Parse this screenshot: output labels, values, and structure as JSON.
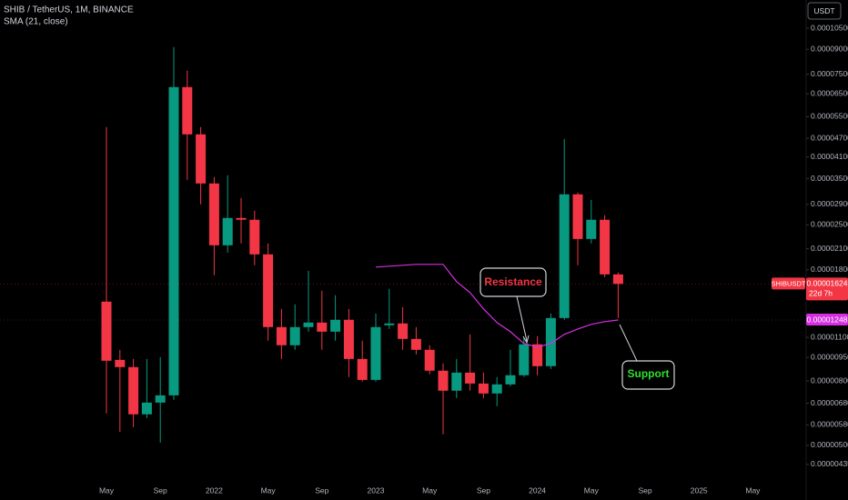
{
  "chart_data": {
    "type": "candlestick",
    "title": "SHIB / TetherUS, 1M, BINANCE",
    "subtitle": "SMA (21, close)",
    "currency": "USDT",
    "log_scale": true,
    "grid": false,
    "up_color": "#089981",
    "down_color": "#f23645",
    "categories": [
      "2021-05",
      "2021-06",
      "2021-07",
      "2021-08",
      "2021-09",
      "2021-10",
      "2021-11",
      "2021-12",
      "2022-01",
      "2022-02",
      "2022-03",
      "2022-04",
      "2022-05",
      "2022-06",
      "2022-07",
      "2022-08",
      "2022-09",
      "2022-10",
      "2022-11",
      "2022-12",
      "2023-01",
      "2023-02",
      "2023-03",
      "2023-04",
      "2023-05",
      "2023-06",
      "2023-07",
      "2023-08",
      "2023-09",
      "2023-10",
      "2023-11",
      "2023-12",
      "2024-01",
      "2024-02",
      "2024-03",
      "2024-04",
      "2024-05",
      "2024-06",
      "2024-07"
    ],
    "open": [
      1.427e-05,
      9.33e-06,
      8.85e-06,
      6.27e-06,
      6.83e-06,
      7.2e-06,
      6.832e-05,
      4.839e-05,
      3.381e-05,
      2.153e-05,
      2.628e-05,
      2.594e-05,
      2.015e-05,
      1.185e-05,
      1.038e-05,
      1.185e-05,
      1.225e-05,
      1.146e-05,
      1.25e-05,
      9.39e-06,
      8.06e-06,
      1.201e-05,
      1.217e-05,
      1.087e-05,
      1.004e-05,
      8.62e-06,
      7.45e-06,
      8.5e-06,
      7.85e-06,
      7.3e-06,
      7.8e-06,
      8.34e-06,
      1.045e-05,
      8.91e-06,
      1.266e-05,
      3.123e-05,
      2.255e-05,
      2.594e-05,
      1.741e-05
    ],
    "high": [
      5.102e-05,
      1.004e-05,
      9.39e-06,
      9.39e-06,
      9.52e-06,
      9.149e-05,
      7.699e-05,
      5.102e-05,
      3.542e-05,
      3.589e-05,
      3.04e-05,
      2.77e-05,
      2.182e-05,
      1.353e-05,
      1.399e-05,
      1.788e-05,
      1.545e-05,
      1.495e-05,
      1.353e-05,
      1.073e-05,
      1.309e-05,
      1.566e-05,
      1.371e-05,
      1.185e-05,
      1.038e-05,
      9.09e-06,
      9.39e-06,
      1.124e-05,
      8.5e-06,
      8.23e-06,
      1.004e-05,
      1.094e-05,
      1.109e-05,
      1.309e-05,
      4.68e-05,
      3.164e-05,
      3e-05,
      2.68e-05,
      1.765e-05
    ],
    "low": [
      6.31e-06,
      5.52e-06,
      5.71e-06,
      6.1e-06,
      5.1e-06,
      6.97e-06,
      3.472e-05,
      2.903e-05,
      1.73e-05,
      2.041e-05,
      2.182e-05,
      1.861e-05,
      1.073e-05,
      9.39e-06,
      1.004e-05,
      1.146e-05,
      1.004e-05,
      1.073e-05,
      8.23e-06,
      7.96e-06,
      7.96e-06,
      1.169e-05,
      1.004e-05,
      9.71e-06,
      8.39e-06,
      5.42e-06,
      7.06e-06,
      7.45e-06,
      7.06e-06,
      6.65e-06,
      7.7e-06,
      8.23e-06,
      8.34e-06,
      8.73e-06,
      1.25e-05,
      1.861e-05,
      2.182e-05,
      1.707e-05,
      1.266e-05
    ],
    "close": [
      9.27e-06,
      8.85e-06,
      6.27e-06,
      6.83e-06,
      7.2e-06,
      6.832e-05,
      4.839e-05,
      3.381e-05,
      2.153e-05,
      2.628e-05,
      2.594e-05,
      2.015e-05,
      1.185e-05,
      1.038e-05,
      1.185e-05,
      1.225e-05,
      1.146e-05,
      1.25e-05,
      9.39e-06,
      8.06e-06,
      1.185e-05,
      1.217e-05,
      1.087e-05,
      1.004e-05,
      8.62e-06,
      7.45e-06,
      8.5e-06,
      7.85e-06,
      7.3e-06,
      7.8e-06,
      8.34e-06,
      1.045e-05,
      8.91e-06,
      1.266e-05,
      3.123e-05,
      2.255e-05,
      2.594e-05,
      1.741e-05,
      1.624e-05
    ],
    "series": [
      {
        "name": "SMA (21, close)",
        "color": "#d52fe0",
        "values": [
          null,
          null,
          null,
          null,
          null,
          null,
          null,
          null,
          null,
          null,
          null,
          null,
          null,
          null,
          null,
          null,
          null,
          null,
          null,
          null,
          1.836e-05,
          1.848e-05,
          1.861e-05,
          1.873e-05,
          1.873e-05,
          1.873e-05,
          1.651e-05,
          1.525e-05,
          1.353e-05,
          1.225e-05,
          1.146e-05,
          1.052e-05,
          1.024e-05,
          1.052e-05,
          1.124e-05,
          1.169e-05,
          1.209e-05,
          1.233e-05,
          1.248e-05
        ]
      }
    ],
    "ylim": [
      3.96e-06,
      0.000129
    ],
    "yticks": [
      {
        "value": 0.000105,
        "label": "0.00010500"
      },
      {
        "value": 9e-05,
        "label": "0.00009000"
      },
      {
        "value": 7.5e-05,
        "label": "0.00007500"
      },
      {
        "value": 6.5e-05,
        "label": "0.00006500"
      },
      {
        "value": 5.5e-05,
        "label": "0.00005500"
      },
      {
        "value": 4.7e-05,
        "label": "0.00004700"
      },
      {
        "value": 4.1e-05,
        "label": "0.00004100"
      },
      {
        "value": 3.5e-05,
        "label": "0.00003500"
      },
      {
        "value": 2.9e-05,
        "label": "0.00002900"
      },
      {
        "value": 2.5e-05,
        "label": "0.00002500"
      },
      {
        "value": 2.1e-05,
        "label": "0.00002100"
      },
      {
        "value": 1.8e-05,
        "label": "0.00001800"
      },
      {
        "value": 1.1e-05,
        "label": "0.00001100"
      },
      {
        "value": 9.5e-06,
        "label": "0.00000950"
      },
      {
        "value": 8e-06,
        "label": "0.00000800"
      },
      {
        "value": 6.8e-06,
        "label": "0.00000680"
      },
      {
        "value": 5.8e-06,
        "label": "0.00000580"
      },
      {
        "value": 5e-06,
        "label": "0.00000500"
      },
      {
        "value": 4.35e-06,
        "label": "0.00000435"
      }
    ],
    "xticks": [
      {
        "value": "2021-05",
        "label": "May"
      },
      {
        "value": "2021-09",
        "label": "Sep"
      },
      {
        "value": "2022-01",
        "label": "2022"
      },
      {
        "value": "2022-05",
        "label": "May"
      },
      {
        "value": "2022-09",
        "label": "Sep"
      },
      {
        "value": "2023-01",
        "label": "2023"
      },
      {
        "value": "2023-05",
        "label": "May"
      },
      {
        "value": "2023-09",
        "label": "Sep"
      },
      {
        "value": "2024-01",
        "label": "2024"
      },
      {
        "value": "2024-05",
        "label": "May"
      },
      {
        "value": "2024-09",
        "label": "Sep"
      },
      {
        "value": "2025-01",
        "label": "2025"
      },
      {
        "value": "2025-05",
        "label": "May"
      }
    ],
    "price_labels": [
      {
        "name": "SHIBUSDT",
        "value": 1.624e-05,
        "label": "0.00001624",
        "countdown": "22d 7h",
        "color": "#f23645"
      },
      {
        "value": 1.248e-05,
        "label": "0.00001248",
        "color": "#d52fe0"
      }
    ],
    "annotations": [
      {
        "text": "Resistance",
        "color": "#f23645"
      },
      {
        "text": "Support",
        "color": "#2fe02f"
      }
    ]
  }
}
